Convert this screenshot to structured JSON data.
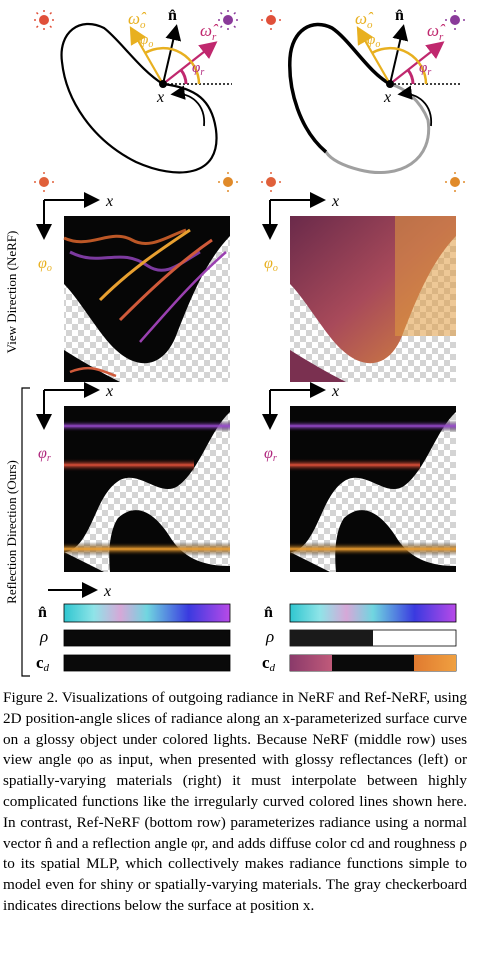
{
  "figure": {
    "labels": {
      "n_hat": "n̂",
      "omega_o": "ω̂",
      "omega_o_sub": "o",
      "omega_r": "ω̂",
      "omega_r_sub": "r",
      "phi": "φ",
      "phi_o_sub": "o",
      "phi_r_sub": "r",
      "x": "x",
      "rho": "ρ",
      "c_d": "c",
      "c_d_sub": "d"
    },
    "row_labels": {
      "nerf": "View Direction (NeRF)",
      "ours": "Reflection Direction (Ours)"
    },
    "colors": {
      "sun_red": "#e0503a",
      "sun_purple": "#8a3a9a",
      "sun_orange": "#e08a2a",
      "omega_o_color": "#e8b020",
      "omega_r_color": "#c0286e",
      "phi_o_color": "#e8b020",
      "phi_r_color": "#b0287e"
    }
  },
  "caption": {
    "label": "Figure 2.",
    "text": "Visualizations of outgoing radiance in NeRF and Ref-NeRF, using 2D position-angle slices of radiance along an x-parameterized surface curve on a glossy object under colored lights. Because NeRF (middle row) uses view angle φo as input, when presented with glossy reflectances (left) or spatially-varying materials (right) it must interpolate between highly complicated functions like the irregularly curved colored lines shown here. In contrast, Ref-NeRF (bottom row) parameterizes radiance using a normal vector n̂ and a reflection angle φr, and adds diffuse color cd and roughness ρ to its spatial MLP, which collectively makes radiance functions simple to model even for shiny or spatially-varying materials. The gray checkerboard indicates directions below the surface at position x."
  }
}
